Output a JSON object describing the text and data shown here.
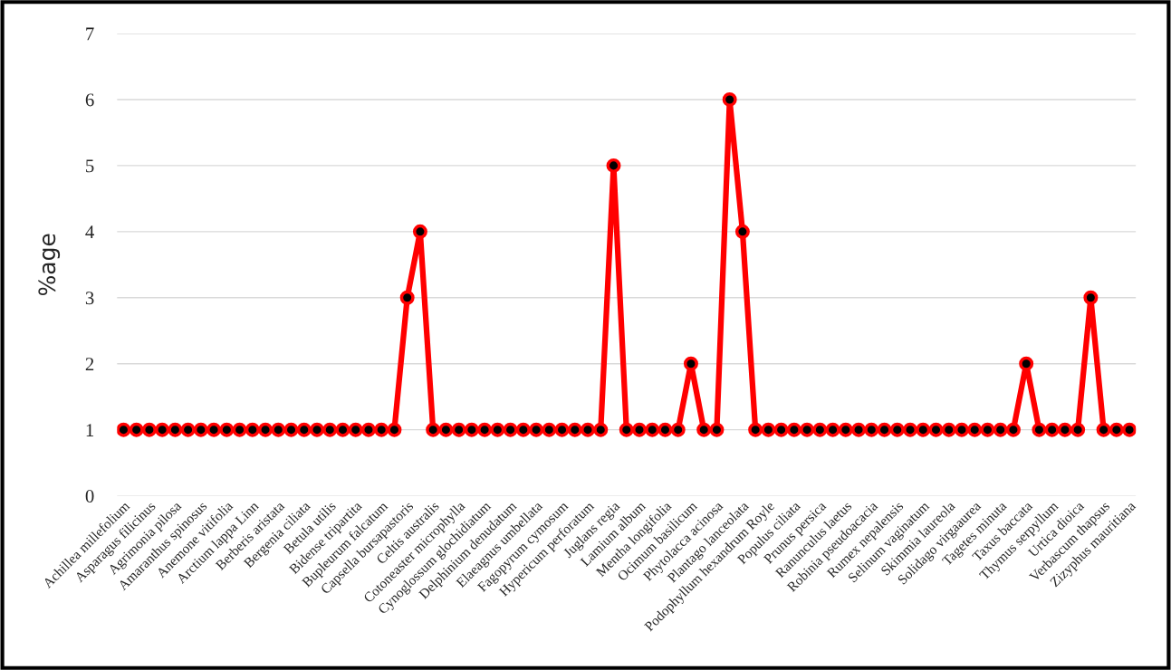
{
  "chart_data": {
    "type": "line",
    "ylabel": "%age",
    "categories": [
      "Achillea millefolium",
      null,
      "Asparagus filicinus",
      null,
      "Agrimonia pilosa",
      null,
      "Amaranthus spinosus",
      null,
      "Anemone vitifolia",
      null,
      "Arctium lappa Linn",
      null,
      "Berberis aristata",
      null,
      "Bergenia ciliata",
      null,
      "Betula utilis",
      null,
      "Bidense tripartita",
      null,
      "Bupleurum falcatum",
      null,
      "Capsella bursapastoris",
      null,
      "Celtis australis",
      null,
      "Cotoneaster microphylla",
      null,
      "Cynoglossum glochidiatum",
      null,
      "Delphinium denudatum",
      null,
      "Elaeagnus umbellata",
      null,
      "Fagopyrum cymosum",
      null,
      "Hypericum perforatum",
      null,
      "Juglans regia",
      null,
      "Lamium album",
      null,
      "Mentha longifolia",
      null,
      "Ocimum basilicum",
      null,
      "Phytolacca acinosa",
      null,
      "Plantago lanceolata",
      null,
      "Podophyllum hexandrum Royle",
      null,
      "Populus ciliata",
      null,
      "Prunus persica",
      null,
      "Ranunculus laetus",
      null,
      "Robinia pseudoacacia",
      null,
      "Rumex nepalensis",
      null,
      "Selinum vaginatum",
      null,
      "Skimmia laureola",
      null,
      "Solidago virgaaurea",
      null,
      "Tagetes minuta",
      null,
      "Taxus baccata",
      null,
      "Thymus serpyllum",
      null,
      "Urtica dioica",
      null,
      "Verbascum thapsus",
      null,
      "Zizyphus mauritiana"
    ],
    "series": [
      {
        "color": "#ff0000",
        "values": [
          1,
          1,
          1,
          1,
          1,
          1,
          1,
          1,
          1,
          1,
          1,
          1,
          1,
          1,
          1,
          1,
          1,
          1,
          1,
          1,
          1,
          1,
          3,
          4,
          1,
          1,
          1,
          1,
          1,
          1,
          1,
          1,
          1,
          1,
          1,
          1,
          1,
          1,
          5,
          1,
          1,
          1,
          1,
          1,
          2,
          1,
          1,
          6,
          4,
          1,
          1,
          1,
          1,
          1,
          1,
          1,
          1,
          1,
          1,
          1,
          1,
          1,
          1,
          1,
          1,
          1,
          1,
          1,
          1,
          1,
          2,
          1,
          1,
          1,
          1,
          3,
          1,
          1,
          1
        ]
      }
    ],
    "ylim": [
      0,
      7
    ],
    "yticks": [
      0,
      1,
      2,
      3,
      4,
      5,
      6,
      7
    ],
    "grid": "y",
    "legend": false,
    "marker": "circle",
    "line_style": "solid"
  }
}
